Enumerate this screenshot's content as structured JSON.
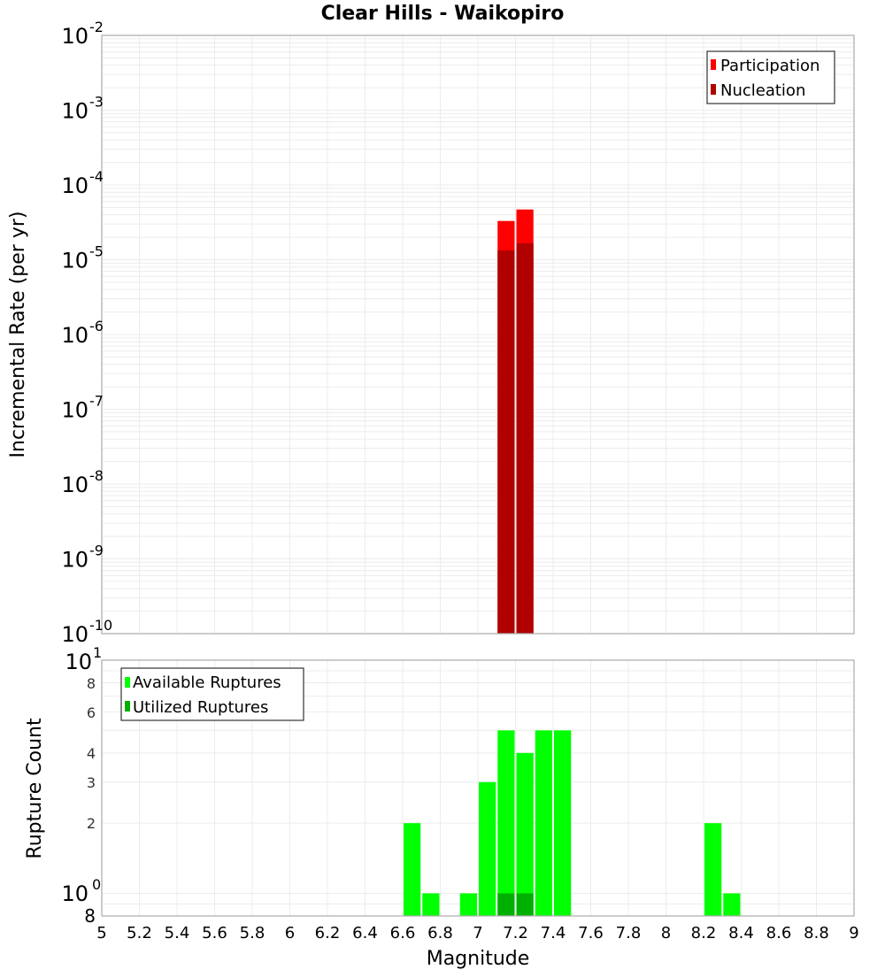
{
  "chart_data": [
    {
      "type": "bar",
      "title": "Clear Hills - Waikopiro",
      "xlabel": "Magnitude",
      "ylabel": "Incremental Rate (per yr)",
      "yscale": "log",
      "ylim": [
        1e-10,
        0.01
      ],
      "xlim": [
        5,
        9
      ],
      "grid": true,
      "legend_position": "top-right",
      "y_ticks": [
        "10^-2",
        "10^-3",
        "10^-4",
        "10^-5",
        "10^-6",
        "10^-7",
        "10^-8",
        "10^-9",
        "10^-10"
      ],
      "x": [
        7.15,
        7.25
      ],
      "series": [
        {
          "name": "Participation",
          "color": "#ff0000",
          "values": [
            3.3e-05,
            4.7e-05
          ]
        },
        {
          "name": "Nucleation",
          "color": "#b00000",
          "values": [
            1.33e-05,
            1.66e-05
          ]
        }
      ]
    },
    {
      "type": "bar",
      "title": "",
      "xlabel": "Magnitude",
      "ylabel": "Rupture Count",
      "yscale": "log",
      "ylim": [
        0.8,
        10
      ],
      "xlim": [
        5,
        9
      ],
      "grid": true,
      "legend_position": "top-left",
      "x_ticks": [
        "5",
        "5.2",
        "5.4",
        "5.6",
        "5.8",
        "6",
        "6.2",
        "6.4",
        "6.6",
        "6.8",
        "7",
        "7.2",
        "7.4",
        "7.6",
        "7.8",
        "8",
        "8.2",
        "8.4",
        "8.6",
        "8.8",
        "9"
      ],
      "y_ticks": [
        "10^1",
        "8",
        "6",
        "4",
        "3",
        "2",
        "10^0",
        "8"
      ],
      "x": [
        6.65,
        6.75,
        6.95,
        7.05,
        7.15,
        7.25,
        7.35,
        7.45,
        8.25,
        8.35
      ],
      "series": [
        {
          "name": "Available Ruptures",
          "color": "#00ff00",
          "values": [
            2,
            1,
            1,
            3,
            5,
            4,
            5,
            5,
            2,
            1
          ]
        },
        {
          "name": "Utilized Ruptures",
          "color": "#00b000",
          "values": [
            0,
            0,
            0,
            0,
            1,
            1,
            0,
            0,
            0,
            0
          ]
        }
      ]
    }
  ],
  "title": "Clear Hills - Waikopiro",
  "xlabel": "Magnitude",
  "top": {
    "ylabel": "Incremental Rate (per yr)",
    "legend": [
      "Participation",
      "Nucleation"
    ],
    "yticks": [
      {
        "b": "10",
        "e": "-2"
      },
      {
        "b": "10",
        "e": "-3"
      },
      {
        "b": "10",
        "e": "-4"
      },
      {
        "b": "10",
        "e": "-5"
      },
      {
        "b": "10",
        "e": "-6"
      },
      {
        "b": "10",
        "e": "-7"
      },
      {
        "b": "10",
        "e": "-8"
      },
      {
        "b": "10",
        "e": "-9"
      },
      {
        "b": "10",
        "e": "-10"
      }
    ]
  },
  "bottom": {
    "ylabel": "Rupture Count",
    "legend": [
      "Available Ruptures",
      "Utilized Ruptures"
    ],
    "ytick_10_1": {
      "b": "10",
      "e": "1"
    },
    "ytick_10_0": {
      "b": "10",
      "e": "0"
    },
    "minor_labels": [
      "8",
      "6",
      "4",
      "3",
      "2",
      "8"
    ]
  },
  "xticks": [
    "5",
    "5.2",
    "5.4",
    "5.6",
    "5.8",
    "6",
    "6.2",
    "6.4",
    "6.6",
    "6.8",
    "7",
    "7.2",
    "7.4",
    "7.6",
    "7.8",
    "8",
    "8.2",
    "8.4",
    "8.6",
    "8.8",
    "9"
  ]
}
